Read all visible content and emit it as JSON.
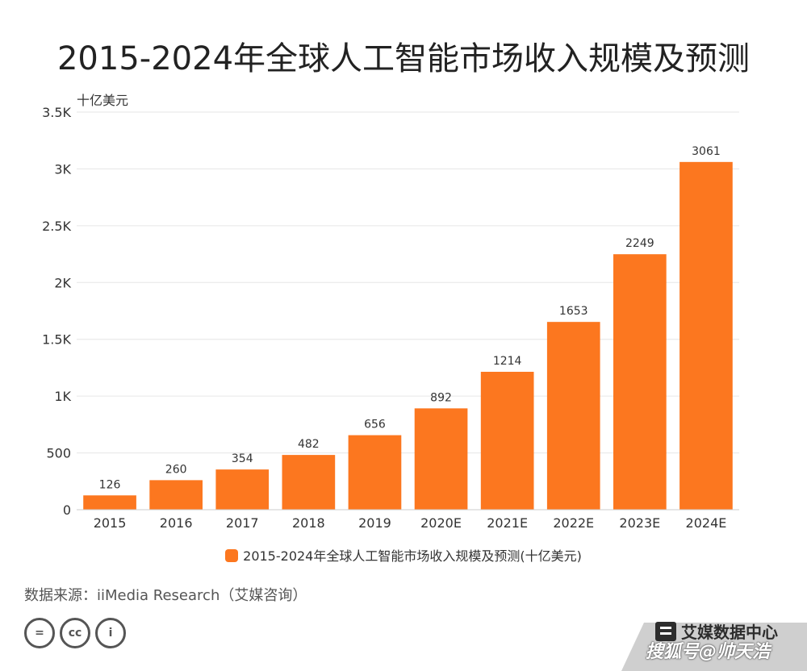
{
  "chart_data": {
    "type": "bar",
    "title": "2015-2024年全球人工智能市场收入规模及预测",
    "unit_label": "十亿美元",
    "categories": [
      "2015",
      "2016",
      "2017",
      "2018",
      "2019",
      "2020E",
      "2021E",
      "2022E",
      "2023E",
      "2024E"
    ],
    "series": [
      {
        "name": "2015-2024年全球人工智能市场收入规模及预测(十亿美元)",
        "values": [
          126,
          260,
          354,
          482,
          656,
          892,
          1214,
          1653,
          2249,
          3061
        ],
        "color": "#fc771f"
      }
    ],
    "ylim": [
      0,
      3500
    ],
    "yticks": [
      0,
      500,
      1000,
      1500,
      2000,
      2500,
      3000,
      3500
    ],
    "ytick_labels": [
      "0",
      "500",
      "1K",
      "1.5K",
      "2K",
      "2.5K",
      "3K",
      "3.5K"
    ],
    "grid": true,
    "legend_position": "bottom",
    "data_labels": true
  },
  "source": "数据来源：iiMedia Research（艾媒咨询）",
  "brand": {
    "name": "艾媒数据中心",
    "logo": "iimedia-logo-icon"
  },
  "license_icons": [
    {
      "name": "cc-equal-icon",
      "glyph": "="
    },
    {
      "name": "cc-icon",
      "glyph": "cc"
    },
    {
      "name": "cc-by-icon",
      "glyph": "i"
    }
  ],
  "watermark": "搜狐号@帅天浩",
  "colors": {
    "bar": "#fc771f",
    "grid": "#e6e6e6",
    "axis": "#cccccc",
    "text": "#333333"
  }
}
